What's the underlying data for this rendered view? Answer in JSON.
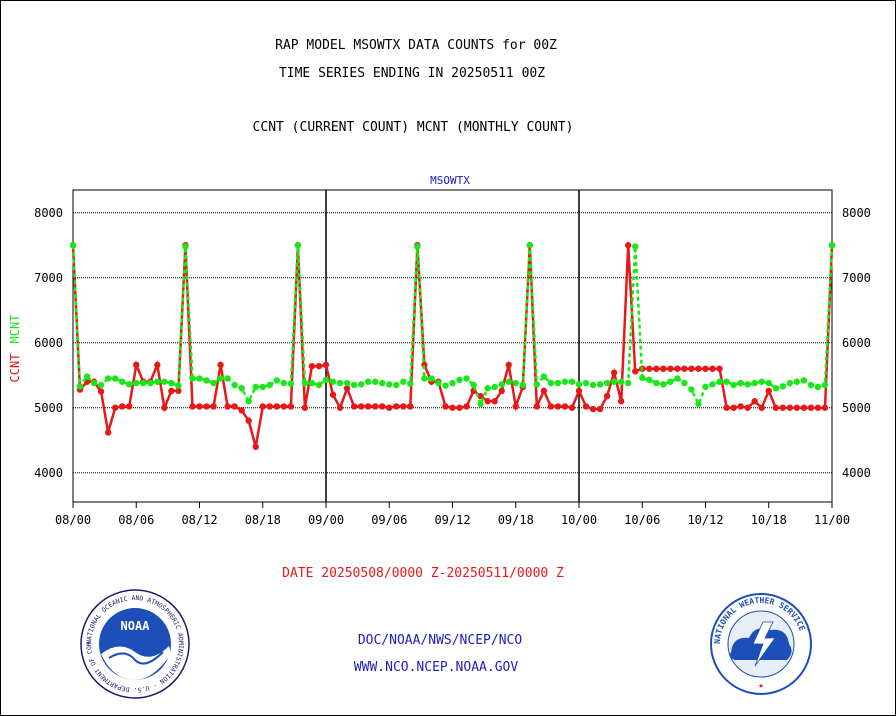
{
  "header": {
    "title_line1": "RAP MODEL MSOWTX DATA COUNTS for 00Z",
    "title_line2": "TIME SERIES ENDING IN 20250511 00Z",
    "subtitle": "CCNT (CURRENT COUNT) MCNT (MONTHLY COUNT)"
  },
  "footer": {
    "date_range": "DATE 20250508/0000 Z-20250511/0000 Z",
    "org_line": "DOC/NOAA/NWS/NCEP/NCO",
    "url_line": "WWW.NCO.NCEP.NOAA.GOV"
  },
  "logos": {
    "noaa_label": "NOAA",
    "noaa_ring_text": "NATIONAL OCEANIC AND ATMOSPHERIC ADMINISTRATION · U.S. DEPARTMENT OF COMMERCE",
    "nws_ring_text": "NATIONAL WEATHER SERVICE"
  },
  "colors": {
    "ccnt": "#e81818",
    "mcnt": "#18e818",
    "panel_label": "#2020c0",
    "footer_blue": "#2020c0",
    "footer_red": "#e81818"
  },
  "chart_data": {
    "type": "line",
    "title": "MSOWTX",
    "ylabel_ccnt": "CCNT",
    "ylabel_mcnt": "MCNT",
    "ylim": [
      3550,
      8350
    ],
    "yticks": [
      4000,
      5000,
      6000,
      7000,
      8000
    ],
    "xlim": [
      0,
      108
    ],
    "xticks": [
      {
        "x": 0,
        "label": "08/00"
      },
      {
        "x": 9,
        "label": "08/06"
      },
      {
        "x": 18,
        "label": "08/12"
      },
      {
        "x": 27,
        "label": "08/18"
      },
      {
        "x": 36,
        "label": "09/00"
      },
      {
        "x": 45,
        "label": "09/06"
      },
      {
        "x": 54,
        "label": "09/12"
      },
      {
        "x": 63,
        "label": "09/18"
      },
      {
        "x": 72,
        "label": "10/00"
      },
      {
        "x": 81,
        "label": "10/06"
      },
      {
        "x": 90,
        "label": "10/12"
      },
      {
        "x": 99,
        "label": "10/18"
      },
      {
        "x": 108,
        "label": "11/00"
      }
    ],
    "day_dividers": [
      36,
      72
    ],
    "grid": true,
    "series": [
      {
        "name": "CCNT",
        "color": "#e81818",
        "x": [
          0,
          1,
          2,
          3,
          4,
          5,
          6,
          7,
          8,
          9,
          10,
          11,
          12,
          13,
          14,
          15,
          16,
          17,
          18,
          19,
          20,
          21,
          22,
          23,
          24,
          25,
          26,
          27,
          28,
          29,
          30,
          31,
          32,
          33,
          34,
          35,
          36,
          37,
          38,
          39,
          40,
          41,
          42,
          43,
          44,
          45,
          46,
          47,
          48,
          49,
          50,
          51,
          52,
          53,
          54,
          55,
          56,
          57,
          58,
          59,
          60,
          61,
          62,
          63,
          64,
          65,
          66,
          67,
          68,
          69,
          70,
          71,
          72,
          73,
          74,
          75,
          76,
          77,
          78,
          79,
          80,
          81,
          82,
          83,
          84,
          85,
          86,
          87,
          88,
          89,
          90,
          91,
          92,
          93,
          94,
          95,
          96,
          97,
          98,
          99,
          100,
          101,
          102,
          103,
          104,
          105,
          106,
          107,
          108
        ],
        "values": [
          7500,
          5280,
          5400,
          5400,
          5250,
          4620,
          5000,
          5020,
          5020,
          5660,
          5400,
          5400,
          5660,
          5000,
          5260,
          5260,
          7500,
          5020,
          5020,
          5020,
          5020,
          5660,
          5020,
          5020,
          4960,
          4800,
          4400,
          5020,
          5020,
          5020,
          5020,
          5020,
          7500,
          5000,
          5640,
          5640,
          5660,
          5200,
          5000,
          5300,
          5020,
          5020,
          5020,
          5020,
          5020,
          5000,
          5020,
          5020,
          5020,
          7500,
          5660,
          5400,
          5400,
          5020,
          5000,
          5000,
          5020,
          5260,
          5180,
          5100,
          5100,
          5260,
          5660,
          5020,
          5320,
          7500,
          5020,
          5260,
          5020,
          5020,
          5020,
          5000,
          5260,
          5020,
          4980,
          4980,
          5180,
          5540,
          5100,
          7500,
          5560,
          5600,
          5600,
          5600,
          5600,
          5600,
          5600,
          5600,
          5600,
          5600,
          5600,
          5600,
          5600,
          5000,
          5000,
          5020,
          5000,
          5100,
          5000,
          5260,
          5000,
          5000,
          5000,
          5000,
          5000,
          5000,
          5000,
          5000,
          7500
        ]
      },
      {
        "name": "MCNT",
        "color": "#18e818",
        "x": [
          0,
          1,
          2,
          3,
          4,
          5,
          6,
          7,
          8,
          9,
          10,
          11,
          12,
          13,
          14,
          15,
          16,
          17,
          18,
          19,
          20,
          21,
          22,
          23,
          24,
          25,
          26,
          27,
          28,
          29,
          30,
          31,
          32,
          33,
          34,
          35,
          36,
          37,
          38,
          39,
          40,
          41,
          42,
          43,
          44,
          45,
          46,
          47,
          48,
          49,
          50,
          51,
          52,
          53,
          54,
          55,
          56,
          57,
          58,
          59,
          60,
          61,
          62,
          63,
          64,
          65,
          66,
          67,
          68,
          69,
          70,
          71,
          72,
          73,
          74,
          75,
          76,
          77,
          78,
          79,
          80,
          81,
          82,
          83,
          84,
          85,
          86,
          87,
          88,
          89,
          90,
          91,
          92,
          93,
          94,
          95,
          96,
          97,
          98,
          99,
          100,
          101,
          102,
          103,
          104,
          105,
          106,
          107,
          108
        ],
        "values": [
          7500,
          5330,
          5480,
          5380,
          5350,
          5450,
          5450,
          5400,
          5360,
          5380,
          5380,
          5380,
          5400,
          5400,
          5380,
          5340,
          7480,
          5450,
          5450,
          5420,
          5380,
          5450,
          5450,
          5350,
          5300,
          5100,
          5320,
          5320,
          5350,
          5420,
          5380,
          5370,
          7500,
          5380,
          5380,
          5350,
          5430,
          5400,
          5380,
          5380,
          5350,
          5360,
          5400,
          5400,
          5380,
          5360,
          5350,
          5400,
          5370,
          7480,
          5450,
          5450,
          5380,
          5340,
          5380,
          5430,
          5450,
          5350,
          5060,
          5300,
          5320,
          5360,
          5400,
          5380,
          5350,
          7500,
          5360,
          5480,
          5380,
          5380,
          5400,
          5400,
          5360,
          5380,
          5350,
          5360,
          5380,
          5400,
          5400,
          5380,
          7480,
          5460,
          5430,
          5380,
          5360,
          5400,
          5450,
          5380,
          5280,
          5060,
          5320,
          5360,
          5400,
          5400,
          5350,
          5380,
          5360,
          5380,
          5400,
          5380,
          5300,
          5330,
          5380,
          5400,
          5420,
          5350,
          5320,
          5350,
          7500
        ]
      }
    ]
  }
}
